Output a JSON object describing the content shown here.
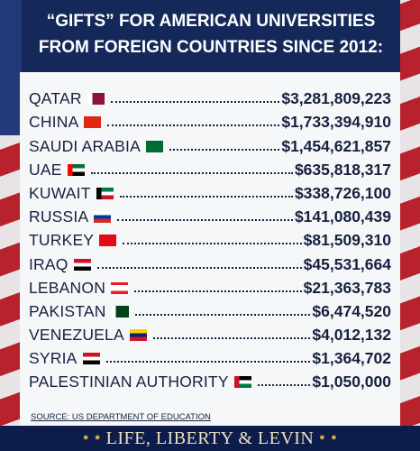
{
  "header": {
    "title_lines": [
      "“GIFTS” FOR AMERICAN UNIVERSITIES",
      "FROM FOREIGN COUNTRIES SINCE 2012:"
    ]
  },
  "table": {
    "rows": [
      [
        "QATAR",
        "$3,281,809,223"
      ],
      [
        "CHINA",
        "$1,733,394,910"
      ],
      [
        "SAUDI ARABIA",
        "$1,454,621,857"
      ],
      [
        "UAE",
        "$635,818,317"
      ],
      [
        "KUWAIT",
        "$338,726,100"
      ],
      [
        "RUSSIA",
        "$141,080,439"
      ],
      [
        "TURKEY",
        "$81,509,310"
      ],
      [
        "IRAQ",
        "$45,531,664"
      ],
      [
        "LEBANON",
        "$21,363,783"
      ],
      [
        "PAKISTAN",
        "$6,474,520"
      ],
      [
        "VENEZUELA",
        "$4,012,132"
      ],
      [
        "SYRIA",
        "$1,364,702"
      ],
      [
        "PALESTINIAN AUTHORITY",
        "$1,050,000"
      ]
    ]
  },
  "source": "SOURCE: US DEPARTMENT OF EDUCATION",
  "banner": "LIFE, LIBERTY & LEVIN"
}
